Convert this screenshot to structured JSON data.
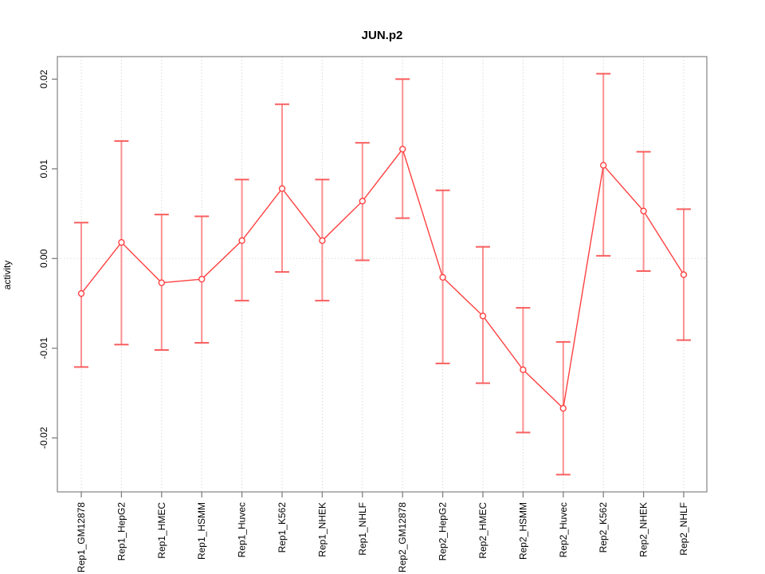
{
  "chart_data": {
    "type": "line",
    "subtype": "points-with-error-bars",
    "title": "JUN.p2",
    "xlabel": "",
    "ylabel": "activity",
    "categories": [
      "Rep1_GM12878",
      "Rep1_HepG2",
      "Rep1_HMEC",
      "Rep1_HSMM",
      "Rep1_Huvec",
      "Rep1_K562",
      "Rep1_NHEK",
      "Rep1_NHLF",
      "Rep2_GM12878",
      "Rep2_HepG2",
      "Rep2_HMEC",
      "Rep2_HSMM",
      "Rep2_Huvec",
      "Rep2_K562",
      "Rep2_NHEK",
      "Rep2_NHLF"
    ],
    "series": [
      {
        "name": "activity",
        "values": [
          -0.0039,
          0.0018,
          -0.0027,
          -0.0023,
          0.002,
          0.0078,
          0.002,
          0.0064,
          0.0122,
          -0.0021,
          -0.0064,
          -0.0124,
          -0.0167,
          0.0104,
          0.0053,
          -0.0018
        ],
        "upper": [
          0.004,
          0.0131,
          0.0049,
          0.0047,
          0.0088,
          0.0172,
          0.0088,
          0.0129,
          0.02,
          0.0076,
          0.0013,
          -0.0055,
          -0.0093,
          0.0206,
          0.0119,
          0.0055
        ],
        "lower": [
          -0.0121,
          -0.0096,
          -0.0102,
          -0.0094,
          -0.0047,
          -0.0015,
          -0.0047,
          -0.0002,
          0.0045,
          -0.0117,
          -0.0139,
          -0.0194,
          -0.0241,
          0.0003,
          -0.0014,
          -0.0091
        ]
      }
    ],
    "yticks": [
      0.02,
      0.01,
      0,
      -0.01,
      -0.02
    ],
    "ytick_labels": [
      "0.02",
      "0.01",
      "0.00",
      "-0.01",
      "-0.02"
    ],
    "ylim": [
      -0.0265,
      0.0225
    ],
    "grid": "vertical-dotted-per-category, dotted-zero-line",
    "legend": "none",
    "colors": {
      "point_and_line": "#f44336",
      "series_red": "#ff4040",
      "error_stem": "#fc9090",
      "error_cap": "#f95f5f",
      "gridline": "#d9d9d9",
      "zero_line": "#e4dcdc",
      "axis_box": "#8c8c8c",
      "tick": "#808080",
      "text": "#000000",
      "background": "#ffffff"
    }
  }
}
